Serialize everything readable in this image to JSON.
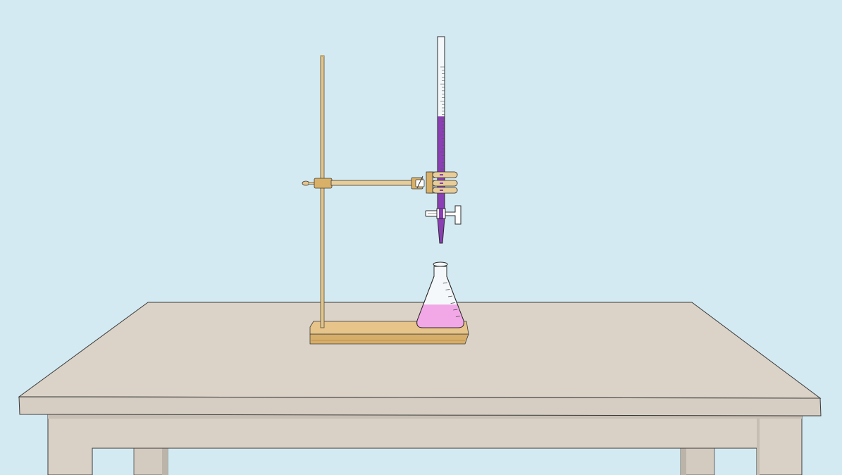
{
  "scene": {
    "colors": {
      "background": "#d4eaf2",
      "table_top": "#dbd3c8",
      "table_edge": "#d6cec3",
      "table_leg": "#d9d1c6",
      "wood": "#e6c48a",
      "wood_dark": "#c49a55",
      "rod": "#e0c68e",
      "titrant": "#8a3fb3",
      "flask_solution": "#f2a8e6",
      "glass": "#f4f8fa",
      "outline": "#3a3a3a"
    },
    "burette": {
      "fill_fraction": 0.54,
      "graduation_count": 30
    },
    "flask": {
      "fill_fraction": 0.45,
      "graduation_count": 6
    }
  }
}
